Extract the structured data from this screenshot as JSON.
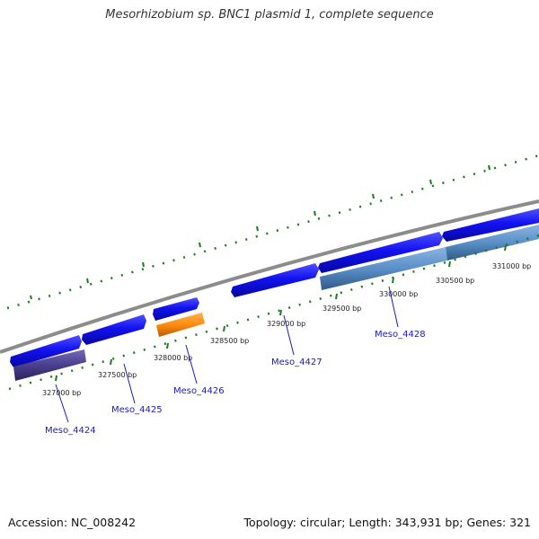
{
  "title": "Mesorhizobium sp. BNC1 plasmid 1, complete sequence",
  "footer": {
    "accession": "Accession: NC_008242",
    "summary": "Topology: circular; Length: 343,931 bp; Genes: 321"
  },
  "scale_labels": [
    "327000 bp",
    "327500 bp",
    "328000 bp",
    "328500 bp",
    "329000 bp",
    "329500 bp",
    "330000 bp",
    "330500 bp",
    "331000 bp"
  ],
  "gene_labels": [
    "Meso_4424",
    "Meso_4425",
    "Meso_4426",
    "Meso_4427",
    "Meso_4428"
  ],
  "colors": {
    "backbone": "#8c8c8c",
    "cds_blue": "#1010e8",
    "gene_purple": "#4a3f8c",
    "gene_orange": "#ff8c10",
    "gene_steelblue": "#5a8fc8",
    "tick_green": "#1f7a1f",
    "label_blue": "#1a1ab8"
  }
}
